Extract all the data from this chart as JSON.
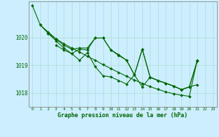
{
  "title": "Graphe pression niveau de la mer (hPa)",
  "xlabel_hours": [
    0,
    1,
    2,
    3,
    4,
    5,
    6,
    7,
    8,
    9,
    10,
    11,
    12,
    13,
    14,
    15,
    16,
    17,
    18,
    19,
    20,
    21,
    22,
    23
  ],
  "ylim": [
    1017.5,
    1021.3
  ],
  "yticks": [
    1018,
    1019,
    1020
  ],
  "background_color": "#cceeff",
  "grid_color": "#aaddcc",
  "line_color": "#006600",
  "marker_color": "#006600",
  "line1_x": [
    0,
    1,
    2,
    3,
    4,
    5,
    6,
    7,
    8,
    9,
    10,
    11,
    12,
    13,
    14,
    15,
    16,
    17,
    18,
    19,
    20,
    21
  ],
  "line1_y": [
    1021.15,
    1020.45,
    1020.2,
    1019.95,
    1019.78,
    1019.62,
    1019.48,
    1019.32,
    1019.18,
    1019.02,
    1018.88,
    1018.74,
    1018.6,
    1018.47,
    1018.35,
    1018.23,
    1018.13,
    1018.04,
    1017.97,
    1017.92,
    1017.88,
    1019.18
  ],
  "line2_x": [
    1,
    2,
    3,
    4,
    5,
    6,
    7,
    8,
    9,
    10,
    11,
    12,
    13,
    14,
    15,
    16,
    17,
    18,
    19,
    20,
    21
  ],
  "line2_y": [
    1020.45,
    1020.15,
    1019.95,
    1019.72,
    1019.58,
    1019.62,
    1019.62,
    1019.98,
    1019.98,
    1019.55,
    1019.38,
    1019.18,
    1018.65,
    1019.58,
    1018.57,
    1018.45,
    1018.35,
    1018.25,
    1018.12,
    1018.22,
    1018.3
  ],
  "line3_x": [
    2,
    3,
    4,
    5,
    6,
    7,
    8,
    9,
    10,
    11,
    12,
    13,
    14,
    15,
    16,
    17,
    18,
    19,
    20,
    21
  ],
  "line3_y": [
    1020.15,
    1019.88,
    1019.62,
    1019.42,
    1019.58,
    1019.55,
    1019.98,
    1019.98,
    1019.55,
    1019.35,
    1019.18,
    1018.65,
    1019.58,
    1018.57,
    1018.45,
    1018.35,
    1018.25,
    1018.12,
    1018.22,
    1019.15
  ],
  "line4_x": [
    3,
    4,
    5,
    6,
    7,
    8,
    9,
    10,
    11,
    12,
    13,
    14,
    15,
    16,
    17,
    18,
    19,
    20,
    21
  ],
  "line4_y": [
    1019.72,
    1019.55,
    1019.42,
    1019.18,
    1019.45,
    1018.95,
    1018.62,
    1018.58,
    1018.45,
    1018.32,
    1018.65,
    1018.22,
    1018.57,
    1018.45,
    1018.35,
    1018.25,
    1018.12,
    1018.22,
    1019.15
  ]
}
